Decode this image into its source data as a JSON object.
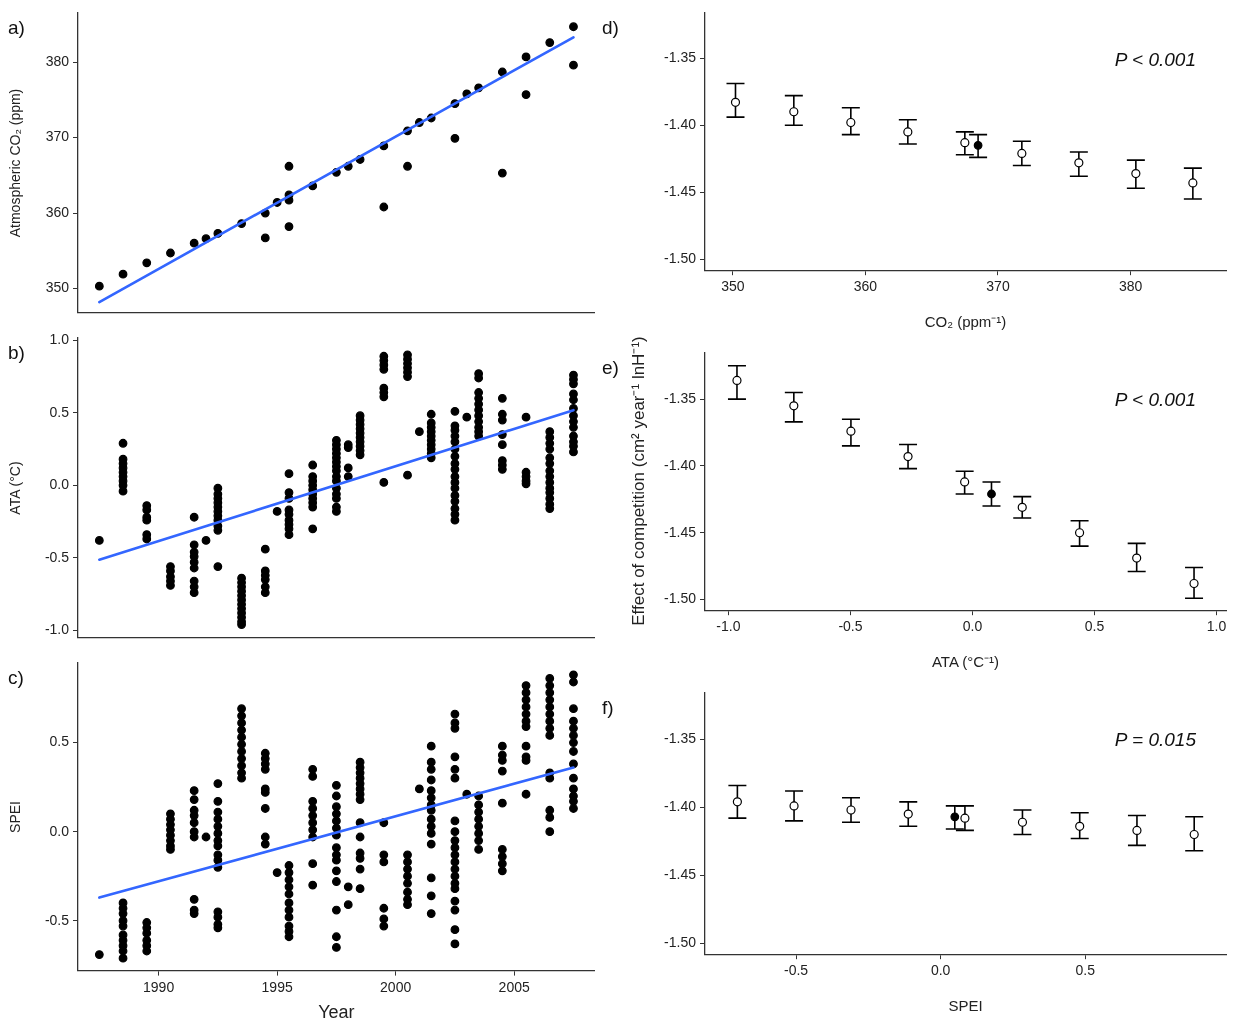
{
  "chart_data": [
    {
      "type": "scatter",
      "ylabel": "Atmospheric CO₂ (ppm)",
      "annotations": [
        "a)"
      ],
      "xlim": [
        1986.6,
        2008.4
      ],
      "xticks": [
        1990,
        1995,
        2000,
        2005
      ],
      "ylim": [
        346.8,
        386.6
      ],
      "yticks": [
        350,
        360,
        370,
        380
      ],
      "tick_labels": "y",
      "marker": "circle",
      "series": [
        {
          "color": "#000000",
          "x": [
            1987.5,
            1988.5,
            1989.5,
            1990.5,
            1991.5,
            1992,
            1992.5,
            1993.5,
            1994.5,
            1994.5,
            1995,
            1995.5,
            1995.5,
            1995.5,
            1995.5,
            1996.5,
            1997.5,
            1998,
            1998.5,
            1999.5,
            1999.5,
            2000.5,
            2000.5,
            2001,
            2001.5,
            2002.5,
            2002.5,
            2003,
            2003.5,
            2004.5,
            2004.5,
            2005.5,
            2005.5,
            2006.5,
            2007.5,
            2007.5
          ],
          "values": [
            350.3,
            351.9,
            353.4,
            354.7,
            356.0,
            356.6,
            357.3,
            358.6,
            360.0,
            356.7,
            361.4,
            362.4,
            361.7,
            366.2,
            358.2,
            363.6,
            365.4,
            366.2,
            367.1,
            368.9,
            360.8,
            370.9,
            366.2,
            372.0,
            372.6,
            374.5,
            369.9,
            375.8,
            376.6,
            378.7,
            365.3,
            380.7,
            375.7,
            382.6,
            384.7,
            379.6
          ]
        },
        {
          "type": "line",
          "color": "#3366ff",
          "marker": "none",
          "x": [
            1987.5,
            2007.5
          ],
          "values": [
            348.2,
            383.3
          ]
        }
      ]
    },
    {
      "type": "scatter",
      "ylabel": "ATA (°C)",
      "annotations": [
        "b)"
      ],
      "xlim": [
        1986.6,
        2008.4
      ],
      "xticks": [
        1990,
        1995,
        2000,
        2005
      ],
      "ylim": [
        -1.05,
        1.02
      ],
      "yticks": [
        {
          "value": -1,
          "label": "-1.0"
        },
        -0.5,
        {
          "value": 0,
          "label": "0.0"
        },
        0.5,
        {
          "value": 1,
          "label": "1.0"
        }
      ],
      "tick_labels": "y",
      "marker": "circle",
      "series": [
        {
          "color": "#000000",
          "x": [
            1987.5,
            1988.5,
            1988.5,
            1988.5,
            1988.5,
            1988.5,
            1988.5,
            1988.5,
            1988.5,
            1988.5,
            1989.5,
            1989.5,
            1989.5,
            1989.5,
            1989.5,
            1989.5,
            1990.5,
            1990.5,
            1990.5,
            1990.5,
            1990.5,
            1991.5,
            1991.5,
            1991.5,
            1991.5,
            1991.5,
            1991.5,
            1991.5,
            1991.5,
            1991.5,
            1992,
            1992.5,
            1992.5,
            1992.5,
            1992.5,
            1992.5,
            1992.5,
            1992.5,
            1992.5,
            1992.5,
            1992.5,
            1992.5,
            1993.5,
            1993.5,
            1993.5,
            1993.5,
            1993.5,
            1993.5,
            1993.5,
            1993.5,
            1993.5,
            1993.5,
            1993.5,
            1993.5,
            1994.5,
            1994.5,
            1994.5,
            1994.5,
            1994.5,
            1994.5,
            1995,
            1995.5,
            1995.5,
            1995.5,
            1995.5,
            1995.5,
            1995.5,
            1995.5,
            1995.5,
            1995.5,
            1996.5,
            1996.5,
            1996.5,
            1996.5,
            1996.5,
            1996.5,
            1996.5,
            1996.5,
            1996.5,
            1996.5,
            1997.5,
            1997.5,
            1997.5,
            1997.5,
            1997.5,
            1997.5,
            1997.5,
            1997.5,
            1997.5,
            1997.5,
            1997.5,
            1997.5,
            1997.5,
            1997.5,
            1997.5,
            1998,
            1998,
            1998,
            1998,
            1998.5,
            1998.5,
            1998.5,
            1998.5,
            1998.5,
            1998.5,
            1998.5,
            1998.5,
            1998.5,
            1998.5,
            1999.5,
            1999.5,
            1999.5,
            1999.5,
            1999.5,
            1999.5,
            1999.5,
            1999.5,
            2000.5,
            2000.5,
            2000.5,
            2000.5,
            2000.5,
            2000.5,
            2000.5,
            2001,
            2001.5,
            2001.5,
            2001.5,
            2001.5,
            2001.5,
            2001.5,
            2001.5,
            2001.5,
            2001.5,
            2001.5,
            2002.5,
            2002.5,
            2002.5,
            2002.5,
            2002.5,
            2002.5,
            2002.5,
            2002.5,
            2002.5,
            2002.5,
            2002.5,
            2002.5,
            2002.5,
            2002.5,
            2002.5,
            2002.5,
            2002.5,
            2003,
            2003.5,
            2003.5,
            2003.5,
            2003.5,
            2003.5,
            2003.5,
            2003.5,
            2003.5,
            2003.5,
            2003.5,
            2003.5,
            2004.5,
            2004.5,
            2004.5,
            2004.5,
            2004.5,
            2004.5,
            2004.5,
            2004.5,
            2005.5,
            2005.5,
            2005.5,
            2005.5,
            2005.5,
            2006.5,
            2006.5,
            2006.5,
            2006.5,
            2006.5,
            2006.5,
            2006.5,
            2006.5,
            2006.5,
            2006.5,
            2006.5,
            2006.5,
            2006.5,
            2006.5,
            2007.5,
            2007.5,
            2007.5,
            2007.5,
            2007.5,
            2007.5,
            2007.5,
            2007.5,
            2007.5,
            2007.5,
            2007.5,
            2007.5,
            2007.5
          ],
          "values": [
            -0.38,
            0.29,
            0.18,
            0.15,
            0.12,
            0.09,
            0.06,
            0.03,
            0,
            -0.04,
            -0.14,
            -0.17,
            -0.22,
            -0.24,
            -0.34,
            -0.37,
            -0.56,
            -0.59,
            -0.63,
            -0.66,
            -0.69,
            -0.22,
            -0.41,
            -0.46,
            -0.49,
            -0.53,
            -0.57,
            -0.66,
            -0.7,
            -0.74,
            -0.38,
            -0.02,
            -0.06,
            -0.09,
            -0.12,
            -0.15,
            -0.18,
            -0.21,
            -0.24,
            -0.28,
            -0.31,
            -0.56,
            -0.64,
            -0.67,
            -0.7,
            -0.73,
            -0.76,
            -0.79,
            -0.82,
            -0.85,
            -0.88,
            -0.91,
            -0.94,
            -0.96,
            -0.44,
            -0.59,
            -0.62,
            -0.65,
            -0.7,
            -0.74,
            -0.18,
            0.08,
            -0.05,
            -0.09,
            -0.17,
            -0.2,
            -0.24,
            -0.27,
            -0.3,
            -0.34,
            0.14,
            0.06,
            0.03,
            0,
            -0.03,
            -0.06,
            -0.09,
            -0.12,
            -0.15,
            -0.3,
            0.31,
            0.28,
            0.25,
            0.22,
            0.19,
            0.16,
            0.13,
            0.1,
            0.06,
            0.03,
            -0.02,
            -0.06,
            -0.09,
            -0.15,
            -0.18,
            0.28,
            0.26,
            0.12,
            0.06,
            0.48,
            0.45,
            0.42,
            0.39,
            0.36,
            0.33,
            0.3,
            0.27,
            0.24,
            0.21,
            0.89,
            0.86,
            0.83,
            0.8,
            0.67,
            0.64,
            0.61,
            0.02,
            0.9,
            0.87,
            0.84,
            0.81,
            0.78,
            0.75,
            0.07,
            0.37,
            0.49,
            0.43,
            0.4,
            0.37,
            0.34,
            0.31,
            0.28,
            0.25,
            0.22,
            0.19,
            0.51,
            0.41,
            0.38,
            0.34,
            0.3,
            0.25,
            0.2,
            0.15,
            0.11,
            0.06,
            0.02,
            -0.02,
            -0.07,
            -0.11,
            -0.16,
            -0.2,
            -0.24,
            0.47,
            0.77,
            0.74,
            0.64,
            0.6,
            0.56,
            0.52,
            0.48,
            0.44,
            0.4,
            0.37,
            0.34,
            0.6,
            0.49,
            0.45,
            0.35,
            0.28,
            0.17,
            0.14,
            0.11,
            0.47,
            0.09,
            0.06,
            0.03,
            0.01,
            0.37,
            0.33,
            0.29,
            0.25,
            0.19,
            0.15,
            0.1,
            0.06,
            0.02,
            -0.02,
            -0.05,
            -0.09,
            -0.13,
            -0.16,
            0.76,
            0.73,
            0.7,
            0.63,
            0.59,
            0.53,
            0.48,
            0.44,
            0.4,
            0.34,
            0.3,
            0.27,
            0.23
          ]
        },
        {
          "type": "line",
          "color": "#3366ff",
          "marker": "none",
          "x": [
            1987.5,
            2007.5
          ],
          "values": [
            -0.513,
            0.518
          ]
        }
      ]
    },
    {
      "type": "scatter",
      "xlabel": "Year",
      "ylabel": "SPEI",
      "annotations": [
        "c)"
      ],
      "xlim": [
        1986.6,
        2008.4
      ],
      "xticks": [
        1990,
        1995,
        2000,
        2005
      ],
      "ylim": [
        -0.78,
        0.95
      ],
      "yticks": [
        -0.5,
        {
          "value": 0,
          "label": "0.0"
        },
        0.5
      ],
      "marker": "circle",
      "series": [
        {
          "color": "#000000",
          "x": [
            1987.5,
            1988.5,
            1988.5,
            1988.5,
            1988.5,
            1988.5,
            1988.5,
            1988.5,
            1988.5,
            1988.5,
            1988.5,
            1989.5,
            1989.5,
            1989.5,
            1989.5,
            1989.5,
            1989.5,
            1990.5,
            1990.5,
            1990.5,
            1990.5,
            1990.5,
            1990.5,
            1990.5,
            1990.5,
            1991.5,
            1991.5,
            1991.5,
            1991.5,
            1991.5,
            1991.5,
            1991.5,
            1991.5,
            1991.5,
            1991.5,
            1992,
            1992.5,
            1992.5,
            1992.5,
            1992.5,
            1992.5,
            1992.5,
            1992.5,
            1992.5,
            1992.5,
            1992.5,
            1992.5,
            1992.5,
            1992.5,
            1992.5,
            1992.5,
            1993.5,
            1993.5,
            1993.5,
            1993.5,
            1993.5,
            1993.5,
            1993.5,
            1993.5,
            1993.5,
            1993.5,
            1993.5,
            1994.5,
            1994.5,
            1994.5,
            1994.5,
            1994.5,
            1994.5,
            1994.5,
            1994.5,
            1994.5,
            1995,
            1995.5,
            1995.5,
            1995.5,
            1995.5,
            1995.5,
            1995.5,
            1995.5,
            1995.5,
            1995.5,
            1995.5,
            1995.5,
            1996.5,
            1996.5,
            1996.5,
            1996.5,
            1996.5,
            1996.5,
            1996.5,
            1996.5,
            1996.5,
            1996.5,
            1997.5,
            1997.5,
            1997.5,
            1997.5,
            1997.5,
            1997.5,
            1997.5,
            1997.5,
            1997.5,
            1997.5,
            1997.5,
            1997.5,
            1997.5,
            1997.5,
            1997.5,
            1998,
            1998,
            1998.5,
            1998.5,
            1998.5,
            1998.5,
            1998.5,
            1998.5,
            1998.5,
            1998.5,
            1998.5,
            1998.5,
            1998.5,
            1998.5,
            1998.5,
            1998.5,
            1999.5,
            1999.5,
            1999.5,
            1999.5,
            1999.5,
            1999.5,
            2000.5,
            2000.5,
            2000.5,
            2000.5,
            2000.5,
            2000.5,
            2000.5,
            2000.5,
            2001,
            2001.5,
            2001.5,
            2001.5,
            2001.5,
            2001.5,
            2001.5,
            2001.5,
            2001.5,
            2001.5,
            2001.5,
            2001.5,
            2001.5,
            2001.5,
            2001.5,
            2001.5,
            2002.5,
            2002.5,
            2002.5,
            2002.5,
            2002.5,
            2002.5,
            2002.5,
            2002.5,
            2002.5,
            2002.5,
            2002.5,
            2002.5,
            2002.5,
            2002.5,
            2002.5,
            2002.5,
            2002.5,
            2002.5,
            2002.5,
            2002.5,
            2003,
            2003.5,
            2003.5,
            2003.5,
            2003.5,
            2003.5,
            2003.5,
            2003.5,
            2003.5,
            2004.5,
            2004.5,
            2004.5,
            2004.5,
            2004.5,
            2004.5,
            2004.5,
            2004.5,
            2004.5,
            2005.5,
            2005.5,
            2005.5,
            2005.5,
            2005.5,
            2005.5,
            2005.5,
            2005.5,
            2005.5,
            2005.5,
            2005.5,
            2006.5,
            2006.5,
            2006.5,
            2006.5,
            2006.5,
            2006.5,
            2006.5,
            2006.5,
            2006.5,
            2006.5,
            2006.5,
            2006.5,
            2006.5,
            2006.5,
            2007.5,
            2007.5,
            2007.5,
            2007.5,
            2007.5,
            2007.5,
            2007.5,
            2007.5,
            2007.5,
            2007.5,
            2007.5,
            2007.5,
            2007.5,
            2007.5
          ],
          "values": [
            -0.69,
            -0.4,
            -0.43,
            -0.46,
            -0.5,
            -0.53,
            -0.58,
            -0.61,
            -0.64,
            -0.67,
            -0.71,
            -0.51,
            -0.54,
            -0.57,
            -0.61,
            -0.64,
            -0.67,
            0.1,
            0.07,
            0.04,
            0.01,
            -0.02,
            -0.05,
            -0.08,
            -0.1,
            0.23,
            0.18,
            0.12,
            0.09,
            0.05,
            0,
            -0.03,
            -0.38,
            -0.44,
            -0.46,
            -0.03,
            0.27,
            0.17,
            0.11,
            0.07,
            0.03,
            -0.01,
            -0.05,
            -0.08,
            -0.13,
            -0.16,
            -0.2,
            -0.45,
            -0.48,
            -0.52,
            -0.54,
            0.69,
            0.65,
            0.61,
            0.57,
            0.53,
            0.49,
            0.45,
            0.41,
            0.37,
            0.33,
            0.3,
            0.44,
            0.41,
            0.38,
            0.35,
            0.24,
            0.22,
            0.13,
            -0.03,
            -0.07,
            -0.23,
            -0.19,
            -0.23,
            -0.27,
            -0.31,
            -0.35,
            -0.4,
            -0.44,
            -0.48,
            -0.53,
            -0.56,
            -0.59,
            0.35,
            0.31,
            0.17,
            0.13,
            0.09,
            0.05,
            0.01,
            -0.03,
            -0.18,
            -0.3,
            0.26,
            0.2,
            0.14,
            0.1,
            0.06,
            0.02,
            -0.02,
            -0.09,
            -0.13,
            -0.16,
            -0.22,
            -0.28,
            -0.44,
            -0.59,
            -0.65,
            -0.31,
            -0.41,
            0.39,
            0.36,
            0.33,
            0.3,
            0.27,
            0.24,
            0.21,
            0.18,
            0.05,
            -0.03,
            -0.12,
            -0.15,
            -0.21,
            -0.32,
            0.05,
            -0.13,
            -0.17,
            -0.43,
            -0.49,
            -0.53,
            -0.13,
            -0.17,
            -0.21,
            -0.25,
            -0.29,
            -0.34,
            -0.38,
            -0.41,
            0.24,
            0.48,
            0.39,
            0.35,
            0.29,
            0.23,
            0.19,
            0.15,
            0.12,
            0.07,
            0.03,
            -0.01,
            -0.07,
            -0.26,
            -0.36,
            -0.46,
            0.66,
            0.61,
            0.58,
            0.42,
            0.35,
            0.3,
            0.06,
            0,
            -0.05,
            -0.09,
            -0.13,
            -0.17,
            -0.21,
            -0.25,
            -0.29,
            -0.32,
            -0.39,
            -0.44,
            -0.55,
            -0.63,
            0.21,
            0.2,
            0.15,
            0.11,
            0.07,
            0.03,
            -0.01,
            -0.05,
            -0.1,
            0.48,
            0.43,
            0.4,
            0.34,
            0.16,
            -0.1,
            -0.14,
            -0.18,
            -0.22,
            0.82,
            0.78,
            0.74,
            0.7,
            0.66,
            0.62,
            0.59,
            0.48,
            0.42,
            0.4,
            0.21,
            0.86,
            0.82,
            0.78,
            0.74,
            0.7,
            0.66,
            0.62,
            0.58,
            0.54,
            0.33,
            0.3,
            0.12,
            0.08,
            0,
            0.88,
            0.84,
            0.69,
            0.62,
            0.58,
            0.54,
            0.5,
            0.45,
            0.38,
            0.3,
            0.24,
            0.2,
            0.17,
            0.13
          ]
        },
        {
          "type": "line",
          "color": "#3366ff",
          "marker": "none",
          "x": [
            1987.5,
            2007.5
          ],
          "values": [
            -0.37,
            0.36
          ]
        }
      ]
    },
    {
      "type": "scatter",
      "xlabel": "CO₂ (ppm⁻¹)",
      "annotations": [
        "d)",
        "P < 0.001"
      ],
      "xlim": [
        347.9,
        387.2
      ],
      "xticks": [
        350,
        360,
        370,
        380
      ],
      "ylim": [
        -1.508,
        -1.316
      ],
      "yticks": [
        {
          "value": -1.5,
          "label": "-1.50"
        },
        -1.45,
        {
          "value": -1.4,
          "label": "-1.40"
        },
        -1.35
      ],
      "marker": "circle",
      "series": [
        {
          "color": "#000000",
          "x": [
            350.2,
            354.6,
            358.9,
            363.2,
            367.5,
            371.8,
            376.1,
            380.4,
            384.7
          ],
          "values": [
            -1.383,
            -1.39,
            -1.398,
            -1.405,
            -1.413,
            -1.421,
            -1.428,
            -1.436,
            -1.443
          ],
          "errors": [
            [
              -1.394,
              -1.369
            ],
            [
              -1.4,
              -1.378
            ],
            [
              -1.407,
              -1.387
            ],
            [
              -1.414,
              -1.396
            ],
            [
              -1.422,
              -1.405
            ],
            [
              -1.43,
              -1.412
            ],
            [
              -1.438,
              -1.42
            ],
            [
              -1.447,
              -1.426
            ],
            [
              -1.455,
              -1.432
            ]
          ]
        },
        {
          "color": "#000000",
          "x": [
            368.5
          ],
          "values": [
            -1.415
          ],
          "errors": [
            [
              -1.424,
              -1.407
            ]
          ]
        }
      ]
    },
    {
      "type": "scatter",
      "xlabel": "ATA (°C⁻¹)",
      "ylabel": "Effect of competition (cm² year⁻¹ lnH⁻¹)",
      "annotations": [
        "e)",
        "P < 0.001"
      ],
      "xlim": [
        -1.096,
        1.039
      ],
      "xticks": [
        {
          "value": -1,
          "label": "-1.0"
        },
        -0.5,
        {
          "value": 0,
          "label": "0.0"
        },
        0.5,
        {
          "value": 1,
          "label": "1.0"
        }
      ],
      "ylim": [
        -1.508,
        -1.315
      ],
      "yticks": [
        {
          "value": -1.5,
          "label": "-1.50"
        },
        -1.45,
        {
          "value": -1.4,
          "label": "-1.40"
        },
        -1.35
      ],
      "marker": "circle",
      "series": [
        {
          "color": "#000000",
          "x": [
            -0.965,
            -0.732,
            -0.498,
            -0.264,
            -0.032,
            0.204,
            0.439,
            0.673,
            0.908
          ],
          "values": [
            -1.336,
            -1.355,
            -1.374,
            -1.393,
            -1.412,
            -1.431,
            -1.45,
            -1.469,
            -1.488
          ],
          "errors": [
            [
              -1.35,
              -1.325
            ],
            [
              -1.367,
              -1.345
            ],
            [
              -1.385,
              -1.365
            ],
            [
              -1.402,
              -1.384
            ],
            [
              -1.421,
              -1.404
            ],
            [
              -1.439,
              -1.423
            ],
            [
              -1.46,
              -1.441
            ],
            [
              -1.479,
              -1.458
            ],
            [
              -1.499,
              -1.476
            ]
          ]
        },
        {
          "color": "#000000",
          "x": [
            0.078
          ],
          "values": [
            -1.421
          ],
          "errors": [
            [
              -1.43,
              -1.412
            ]
          ]
        }
      ]
    },
    {
      "type": "scatter",
      "xlabel": "SPEI",
      "annotations": [
        "f)",
        "P = 0.015"
      ],
      "xlim": [
        -0.815,
        0.987
      ],
      "xticks": [
        -0.5,
        {
          "value": 0,
          "label": "0.0"
        },
        0.5
      ],
      "ylim": [
        -1.508,
        -1.316
      ],
      "yticks": [
        {
          "value": -1.5,
          "label": "-1.50"
        },
        -1.45,
        {
          "value": -1.4,
          "label": "-1.40"
        },
        -1.35
      ],
      "marker": "circle",
      "series": [
        {
          "color": "#000000",
          "x": [
            -0.703,
            -0.507,
            -0.31,
            -0.112,
            0.084,
            0.283,
            0.481,
            0.679,
            0.877
          ],
          "values": [
            -1.396,
            -1.399,
            -1.402,
            -1.405,
            -1.408,
            -1.411,
            -1.414,
            -1.417,
            -1.42
          ],
          "errors": [
            [
              -1.408,
              -1.384
            ],
            [
              -1.41,
              -1.388
            ],
            [
              -1.411,
              -1.393
            ],
            [
              -1.414,
              -1.396
            ],
            [
              -1.417,
              -1.399
            ],
            [
              -1.42,
              -1.402
            ],
            [
              -1.423,
              -1.404
            ],
            [
              -1.428,
              -1.406
            ],
            [
              -1.432,
              -1.407
            ]
          ]
        },
        {
          "color": "#000000",
          "x": [
            0.049
          ],
          "values": [
            -1.407
          ],
          "errors": [
            [
              -1.416,
              -1.399
            ]
          ]
        }
      ]
    }
  ]
}
